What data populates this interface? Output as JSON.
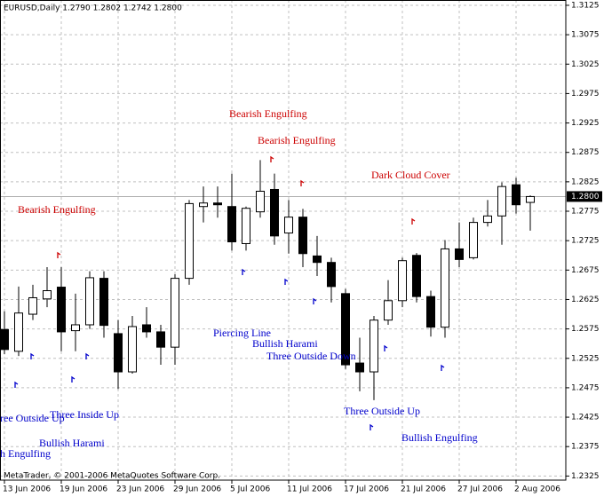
{
  "chart_data": {
    "type": "candlestick",
    "title": "EURUSD,Daily  1.2790 1.2802 1.2742 1.2800",
    "footer": "MetaTrader, © 2001-2006 MetaQuotes Software Corp.",
    "categories": [
      "13 Jun 2006",
      null,
      null,
      null,
      "19 Jun 2006",
      null,
      null,
      null,
      "23 Jun 2006",
      null,
      null,
      null,
      "29 Jun 2006",
      null,
      null,
      null,
      "5 Jul 2006",
      null,
      null,
      null,
      "11 Jul 2006",
      null,
      null,
      null,
      "17 Jul 2006",
      null,
      null,
      null,
      "21 Jul 2006",
      null,
      null,
      null,
      "27 Jul 2006",
      null,
      null,
      null,
      "2 Aug 2006",
      null
    ],
    "open": [
      1.2574,
      1.2537,
      1.26,
      1.2626,
      1.2646,
      1.2572,
      1.2582,
      1.2661,
      1.2567,
      1.2502,
      1.2582,
      1.257,
      1.2544,
      1.2661,
      1.2783,
      1.2789,
      1.2783,
      1.272,
      1.2774,
      1.2812,
      1.2738,
      1.2765,
      1.2699,
      1.2688,
      1.2635,
      1.2517,
      1.2502,
      1.259,
      1.2623,
      1.27,
      1.263,
      1.2578,
      1.2711,
      1.2696,
      1.2756,
      1.2767,
      1.282,
      1.279
    ],
    "high": [
      1.2605,
      1.2647,
      1.265,
      1.268,
      1.268,
      1.2635,
      1.2673,
      1.2673,
      1.259,
      1.2597,
      1.2612,
      1.2582,
      1.2668,
      1.2794,
      1.2817,
      1.2817,
      1.2839,
      1.2783,
      1.2862,
      1.2839,
      1.2794,
      1.2779,
      1.2733,
      1.2696,
      1.2643,
      1.256,
      1.2597,
      1.2658,
      1.2696,
      1.2704,
      1.264,
      1.2726,
      1.2756,
      1.2764,
      1.2794,
      1.2824,
      1.2832,
      1.2802
    ],
    "low": [
      1.2532,
      1.2529,
      1.259,
      1.2612,
      1.2537,
      1.2537,
      1.2575,
      1.256,
      1.2473,
      1.2499,
      1.256,
      1.2514,
      1.2514,
      1.265,
      1.2756,
      1.2764,
      1.2708,
      1.2708,
      1.2764,
      1.2718,
      1.2703,
      1.268,
      1.2665,
      1.262,
      1.2507,
      1.2469,
      1.2454,
      1.2582,
      1.2612,
      1.262,
      1.2562,
      1.256,
      1.268,
      1.2693,
      1.2749,
      1.2718,
      1.2771,
      1.2742
    ],
    "close": [
      1.254,
      1.2602,
      1.2628,
      1.264,
      1.257,
      1.2582,
      1.2662,
      1.2581,
      1.2502,
      1.2579,
      1.257,
      1.2544,
      1.2661,
      1.2788,
      1.2789,
      1.2786,
      1.2723,
      1.278,
      1.2809,
      1.2733,
      1.2765,
      1.2703,
      1.2688,
      1.2647,
      1.2514,
      1.2502,
      1.259,
      1.2623,
      1.2691,
      1.263,
      1.2578,
      1.2711,
      1.2693,
      1.2756,
      1.2767,
      1.2817,
      1.2786,
      1.28
    ],
    "up_color": "#ffffff",
    "down_color": "#000000",
    "ylim": [
      1.2318,
      1.3134
    ],
    "yticks": [
      1.3125,
      1.3075,
      1.3025,
      1.2975,
      1.2925,
      1.2875,
      1.2825,
      1.2775,
      1.2725,
      1.2675,
      1.2625,
      1.2575,
      1.2525,
      1.2475,
      1.2425,
      1.2375,
      1.2325
    ],
    "grid": true,
    "current_price": {
      "value": 1.28,
      "label": "1.2800"
    },
    "annotations": [
      {
        "text": "Bearish Engulfing",
        "color": "#cc0000"
      },
      {
        "text": "Bearish Engulfing",
        "color": "#cc0000"
      },
      {
        "text": "Bearish Engulfing",
        "color": "#cc0000"
      },
      {
        "text": "Dark Cloud Cover",
        "color": "#cc0000"
      },
      {
        "text": "Piercing Line",
        "color": "#0000cc"
      },
      {
        "text": "Bullish Harami",
        "color": "#0000cc"
      },
      {
        "text": "Three Outside Down",
        "color": "#0000cc"
      },
      {
        "text": "Three Outside Up",
        "color": "#0000cc"
      },
      {
        "text": "Bullish Engulfing",
        "color": "#0000cc"
      },
      {
        "text": "Three Inside Up",
        "color": "#0000cc"
      },
      {
        "text": "ree Outside Up",
        "color": "#0000cc"
      },
      {
        "text": "Bullish Harami",
        "color": "#0000cc"
      },
      {
        "text": "h Engulfing",
        "color": "#0000cc"
      }
    ]
  }
}
